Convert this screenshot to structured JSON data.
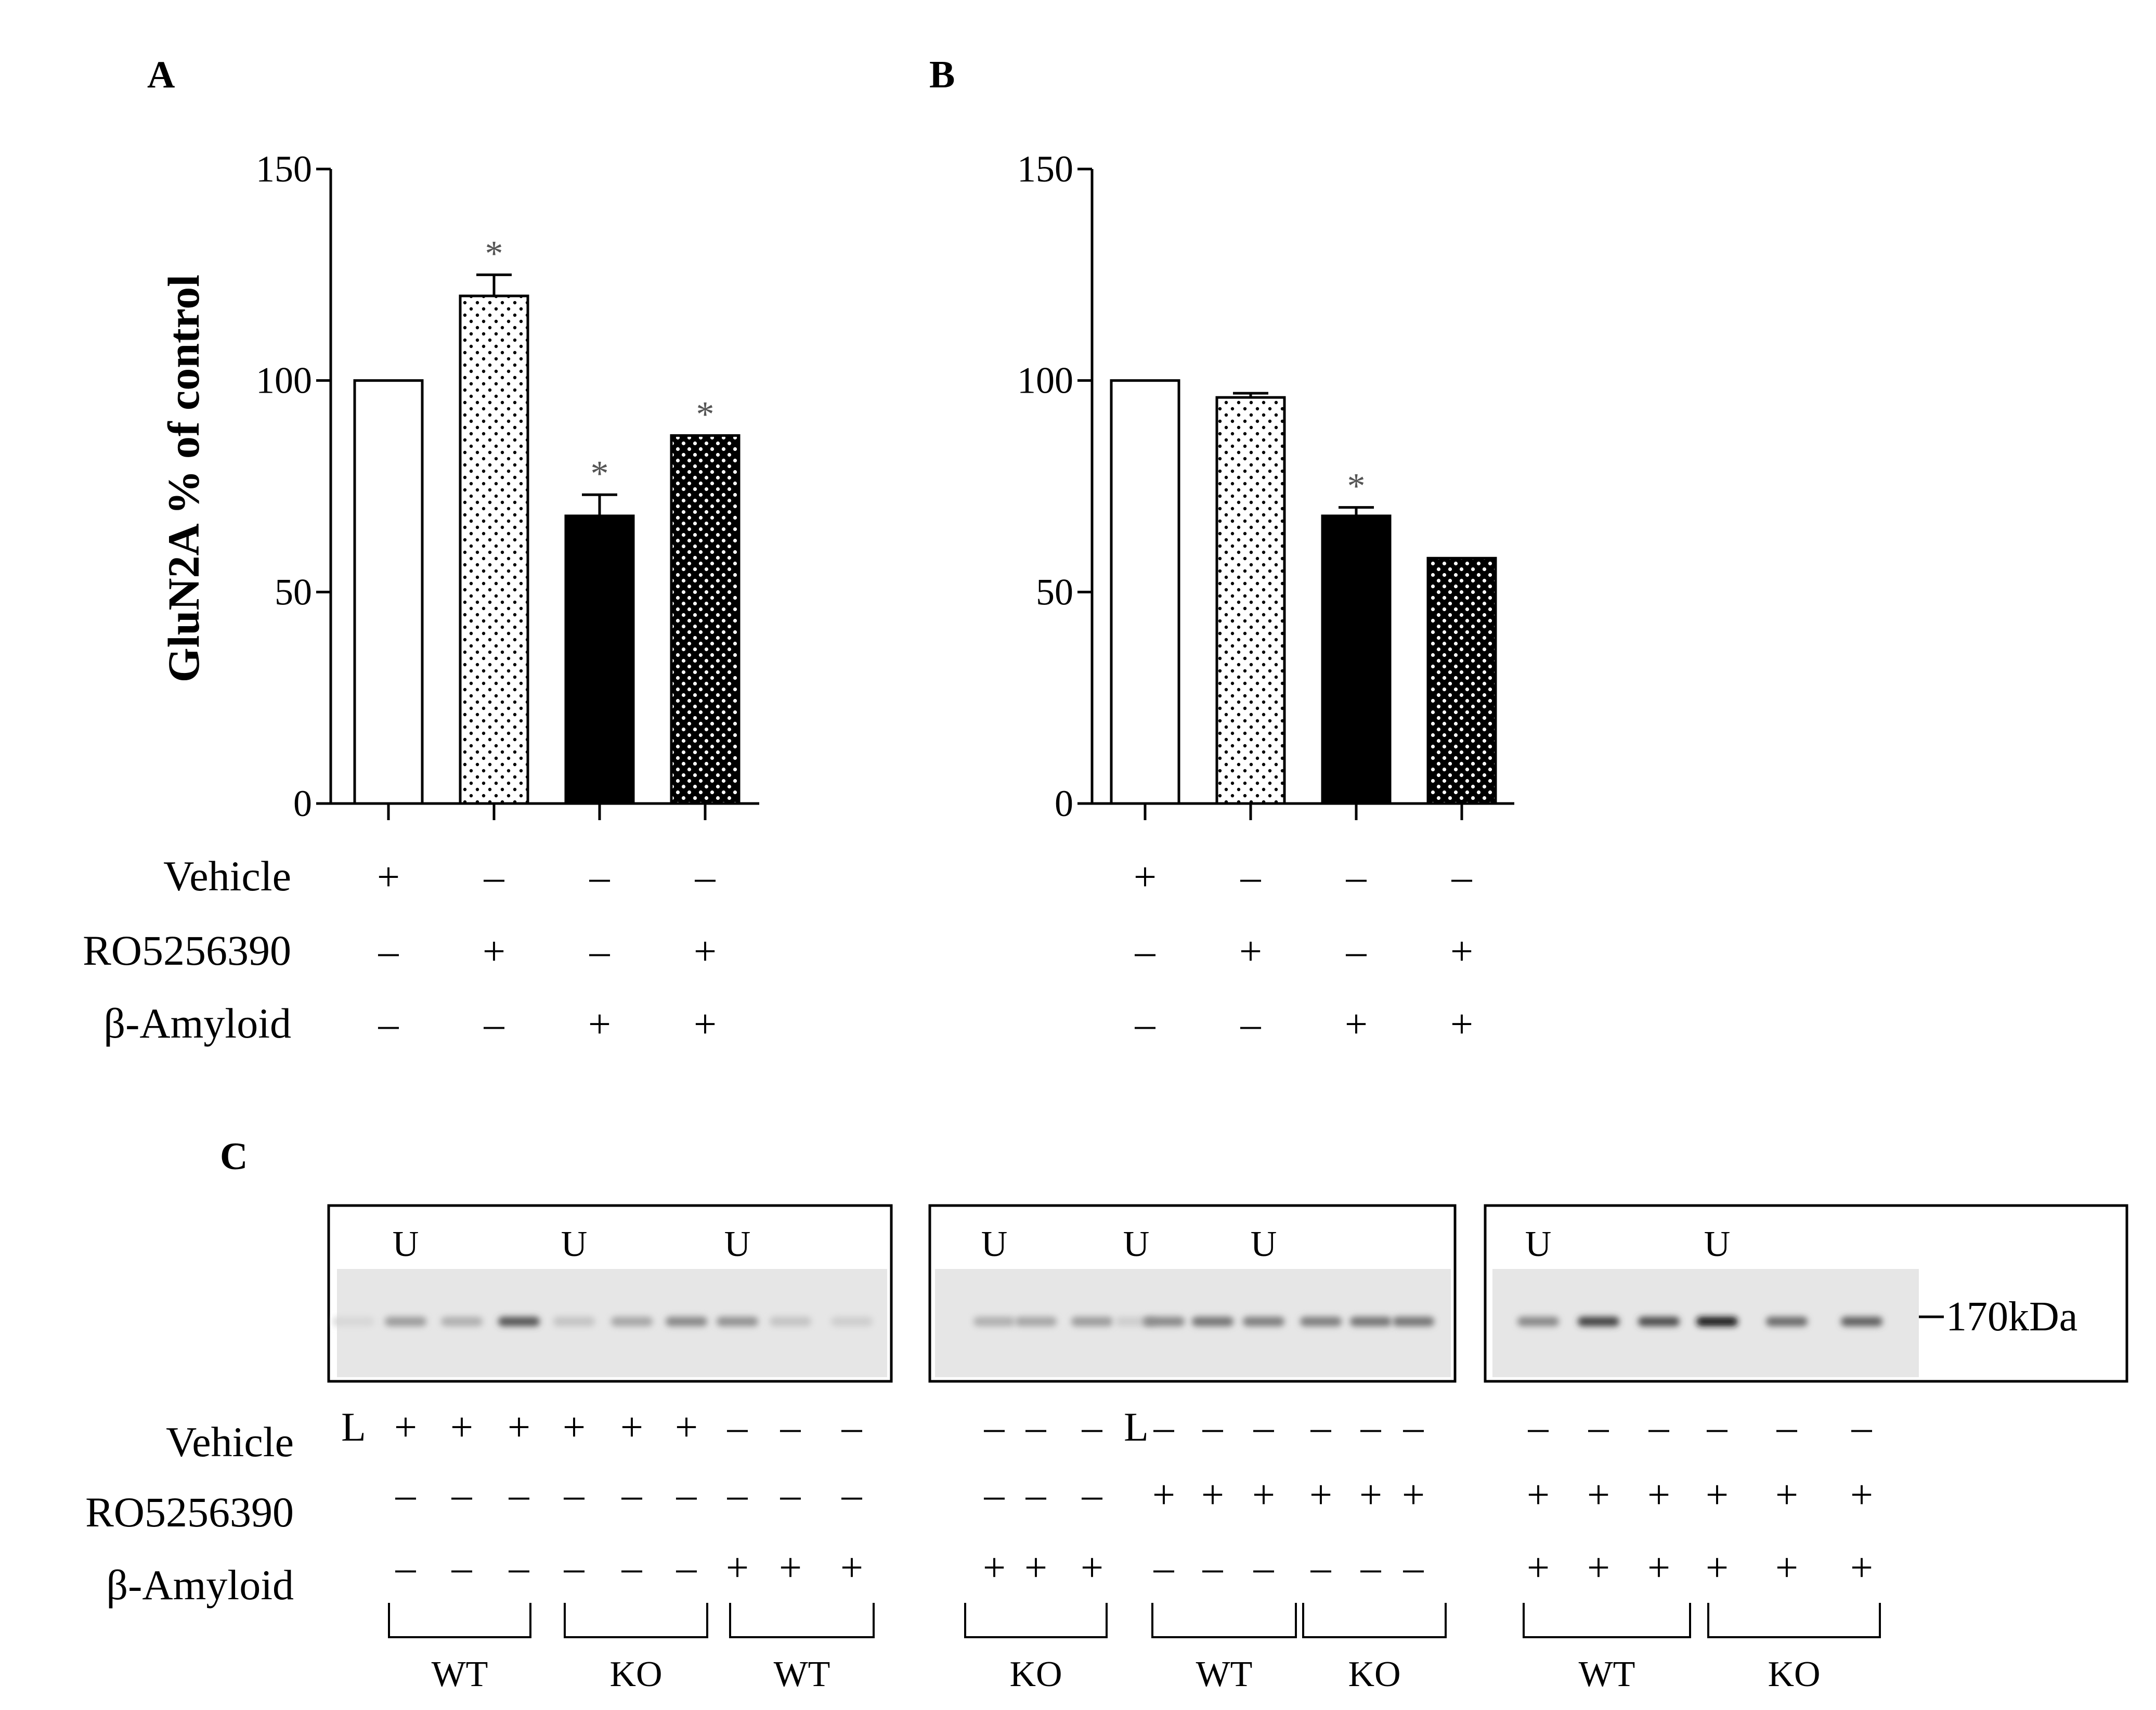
{
  "chart_data": [
    {
      "type": "bar",
      "panel": "A",
      "ylabel": "GluN2A % of control",
      "ylim": [
        0,
        150
      ],
      "yticks": [
        0,
        50,
        100,
        150
      ],
      "values": [
        100,
        120,
        68,
        87
      ],
      "errors": [
        0,
        5,
        5,
        0
      ],
      "significant": [
        false,
        true,
        true,
        true
      ],
      "fills": [
        "white",
        "dots-light",
        "black",
        "dots-dense"
      ],
      "rows": [
        {
          "label": "Vehicle",
          "values": [
            "+",
            "–",
            "–",
            "–"
          ]
        },
        {
          "label": "RO5256390",
          "values": [
            "–",
            "+",
            "–",
            "+"
          ]
        },
        {
          "label": "β-Amyloid",
          "values": [
            "–",
            "–",
            "+",
            "+"
          ]
        }
      ]
    },
    {
      "type": "bar",
      "panel": "B",
      "ylabel": "",
      "ylim": [
        0,
        150
      ],
      "yticks": [
        0,
        50,
        100,
        150
      ],
      "values": [
        100,
        96,
        68,
        58
      ],
      "errors": [
        0,
        1,
        2,
        0
      ],
      "significant": [
        false,
        false,
        true,
        false
      ],
      "fills": [
        "white",
        "dots-light",
        "black",
        "dots-dense"
      ],
      "rows": [
        {
          "label": "",
          "values": [
            "+",
            "–",
            "–",
            "–"
          ]
        },
        {
          "label": "",
          "values": [
            "–",
            "+",
            "–",
            "+"
          ]
        },
        {
          "label": "",
          "values": [
            "–",
            "–",
            "+",
            "+"
          ]
        }
      ]
    }
  ],
  "significance_symbol": "*",
  "blot": {
    "panel": "C",
    "marker_label": "170kDa",
    "lane_marker": "U",
    "row_labels": [
      "Vehicle",
      "RO5256390",
      "β-Amyloid"
    ],
    "ladder_label": "L",
    "boxes": [
      {
        "u_lanes": [
          1,
          4,
          7
        ],
        "vehicle": [
          "L",
          "+",
          "+",
          "+",
          "+",
          "+",
          "+",
          "–",
          "–",
          "–"
        ],
        "ro": [
          "",
          "–",
          "–",
          "–",
          "–",
          "–",
          "–",
          "–",
          "–",
          "–"
        ],
        "amyloid": [
          "",
          "–",
          "–",
          "–",
          "–",
          "–",
          "–",
          "+",
          "+",
          "+"
        ],
        "groups": [
          "WT",
          "KO",
          "WT"
        ],
        "bands": [
          0.05,
          0.35,
          0.25,
          0.7,
          0.15,
          0.3,
          0.45,
          0.4,
          0.15,
          0.1
        ]
      },
      {
        "u_lanes": [
          0,
          3,
          6
        ],
        "vehicle": [
          "–",
          "–",
          "–",
          "L",
          "–",
          "–",
          "–",
          "–",
          "–",
          "–"
        ],
        "ro": [
          "–",
          "–",
          "–",
          "",
          "+",
          "+",
          "+",
          "+",
          "+",
          "+"
        ],
        "amyloid": [
          "+",
          "+",
          "+",
          "",
          "–",
          "–",
          "–",
          "–",
          "–",
          "–"
        ],
        "groups": [
          "KO",
          "WT",
          "KO"
        ],
        "bands": [
          0.25,
          0.3,
          0.35,
          0.1,
          0.45,
          0.55,
          0.5,
          0.5,
          0.55,
          0.55
        ]
      },
      {
        "u_lanes": [
          0,
          3
        ],
        "vehicle": [
          "–",
          "–",
          "–",
          "–",
          "–",
          "–"
        ],
        "ro": [
          "+",
          "+",
          "+",
          "+",
          "+",
          "+"
        ],
        "amyloid": [
          "+",
          "+",
          "+",
          "+",
          "+",
          "+"
        ],
        "groups": [
          "WT",
          "KO"
        ],
        "bands": [
          0.45,
          0.8,
          0.75,
          1.0,
          0.6,
          0.65
        ]
      }
    ]
  }
}
